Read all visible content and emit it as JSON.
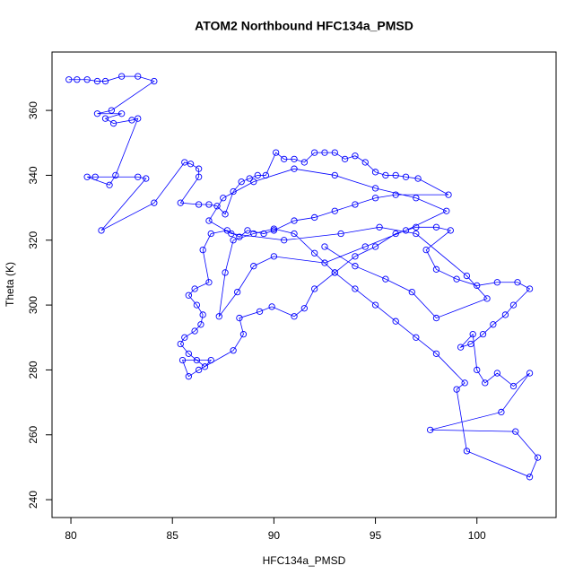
{
  "chart_data": {
    "type": "line",
    "title": "ATOM2 Northbound HFC134a_PMSD",
    "x_label": "HFC134a_PMSD",
    "y_label": "Theta (K)",
    "color": "#0000ff",
    "markers": true,
    "xlim": [
      79.07,
      103.9
    ],
    "ylim": [
      234.5,
      378
    ],
    "xticks": [
      80,
      85,
      90,
      95,
      100
    ],
    "yticks": [
      240,
      260,
      280,
      300,
      320,
      340,
      360
    ],
    "x": [
      79.9,
      80.3,
      80.8,
      81.3,
      81.7,
      82.5,
      83.3,
      84.1,
      82.0,
      81.3,
      82.5,
      81.7,
      82.1,
      83,
      83.3,
      82.2,
      81.9,
      80.8,
      81.2,
      83.3,
      83.7,
      81.5,
      84.1,
      85.6,
      85.9,
      86.3,
      86.3,
      85.4,
      86.3,
      86.8,
      87.2,
      87.6,
      88.0,
      88.4,
      88.8,
      89.2,
      89.6,
      90.1,
      90.5,
      91,
      91.5,
      92,
      92.5,
      93,
      93.5,
      94,
      94.5,
      95,
      95.5,
      96,
      96.5,
      97.1,
      98.6,
      96,
      95,
      94,
      93,
      92,
      91,
      90,
      89.5,
      88.7,
      88.3,
      87.7,
      86.9,
      86.5,
      86.8,
      86.1,
      85.8,
      86.2,
      86.5,
      86.4,
      86.1,
      85.6,
      85.4,
      85.8,
      86.2,
      86.6,
      86.9,
      85.5,
      85.8,
      86.3,
      88,
      88.5,
      88.3,
      89.3,
      89.9,
      91.0,
      91.5,
      92,
      93,
      94,
      95,
      96,
      97,
      98,
      98.7,
      97.5,
      98,
      99,
      100,
      101,
      102,
      102.6,
      101.8,
      101.4,
      100.8,
      100.3,
      99.7,
      99.2,
      99.8,
      100,
      100.4,
      101,
      101.8,
      102.6,
      101.2,
      97.7,
      101.9,
      103,
      102.6,
      99.5,
      99,
      99.4,
      98,
      97,
      96,
      95,
      94,
      93,
      92,
      91,
      90,
      89,
      88,
      87.6,
      87.3,
      88.2,
      89,
      90,
      92.5,
      94.5,
      96.5,
      98.5,
      97,
      95,
      93,
      91,
      89,
      87.5,
      86.8,
      87.9,
      90.5,
      93.3,
      95.2,
      97,
      99.5,
      100.5,
      98,
      96.8,
      95.5,
      94,
      92.5
    ],
    "values": [
      369.5,
      369.5,
      369.5,
      369,
      369,
      370.5,
      370.5,
      369,
      360,
      359,
      359,
      357.5,
      356,
      357,
      357.5,
      340,
      337,
      339.5,
      339.5,
      339.5,
      339,
      323,
      331.5,
      344,
      343.5,
      342,
      339.5,
      331.5,
      331,
      331,
      330.5,
      328,
      335,
      338,
      339,
      340,
      340,
      347,
      345,
      345,
      344,
      347,
      347,
      347,
      345,
      346,
      344,
      341,
      340,
      340,
      339.5,
      339,
      334,
      334,
      333,
      331,
      329,
      327,
      326,
      323,
      322,
      323,
      321,
      323,
      322,
      317,
      307,
      305,
      303,
      300,
      297,
      294,
      292,
      290,
      288,
      285,
      283,
      281,
      283,
      283,
      278,
      280,
      286,
      291,
      296,
      298,
      299.5,
      296.5,
      299,
      305,
      310,
      315,
      318,
      322,
      324,
      324,
      323,
      317,
      311,
      308,
      306,
      307,
      307,
      305,
      300,
      297,
      294,
      291,
      288,
      287,
      291,
      280,
      276,
      279,
      275,
      279,
      267,
      261.5,
      261,
      253,
      247,
      255,
      274,
      276,
      285,
      290,
      295,
      300,
      305,
      310,
      316,
      322,
      323.5,
      322,
      320,
      310,
      296.5,
      304,
      312,
      315,
      313,
      318,
      323,
      329,
      333,
      336,
      340,
      342,
      338,
      333,
      326,
      322,
      320,
      322,
      324,
      322,
      309,
      302,
      296,
      304,
      308,
      312,
      318
    ]
  }
}
